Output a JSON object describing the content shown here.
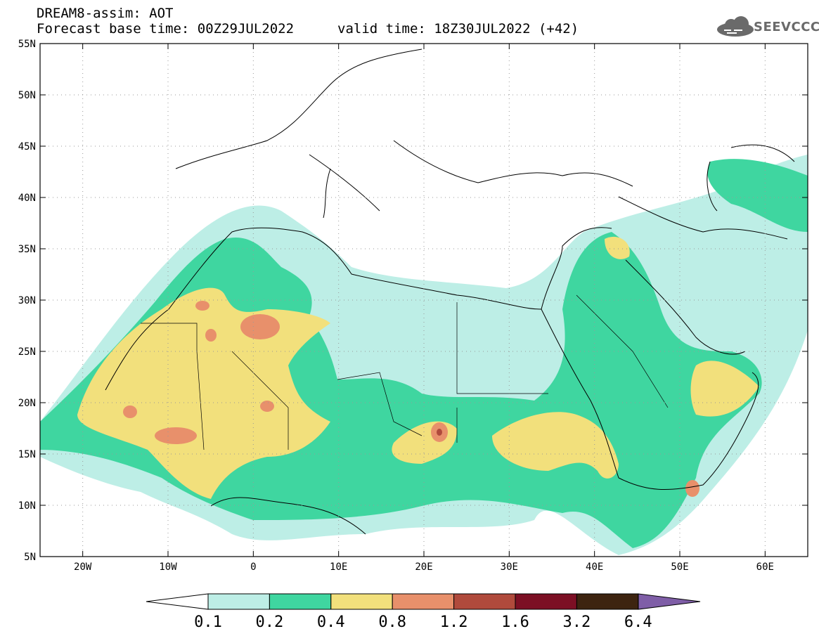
{
  "header": {
    "title": "DREAM8-assim: AOT",
    "base_time": "Forecast base time: 00Z29JUL2022",
    "valid_time": "valid time: 18Z30JUL2022 (+42)",
    "logo_text": "SEEVCCC"
  },
  "map": {
    "lon_range": [
      -25,
      65
    ],
    "lat_range": [
      5,
      55
    ],
    "lat_ticks": [
      "55N",
      "50N",
      "45N",
      "40N",
      "35N",
      "30N",
      "25N",
      "20N",
      "15N",
      "10N",
      "5N"
    ],
    "lon_ticks": [
      "20W",
      "10W",
      "0",
      "10E",
      "20E",
      "30E",
      "40E",
      "50E",
      "60E"
    ],
    "colors": {
      "lvl_01": "#bdeee6",
      "lvl_02": "#3fd6a0",
      "lvl_04": "#f2e07c",
      "lvl_08": "#e8906b",
      "lvl_12": "#b04a3c",
      "lvl_16": "#7c0f24",
      "lvl_32": "#3d2410",
      "lvl_64": "#7f5ea7"
    }
  },
  "colorbar": {
    "labels": [
      "0.1",
      "0.2",
      "0.4",
      "0.8",
      "1.2",
      "1.6",
      "3.2",
      "6.4"
    ],
    "colors": [
      "#bdeee6",
      "#3fd6a0",
      "#f2e07c",
      "#e8906b",
      "#b04a3c",
      "#7c0f24",
      "#3d2410"
    ]
  }
}
